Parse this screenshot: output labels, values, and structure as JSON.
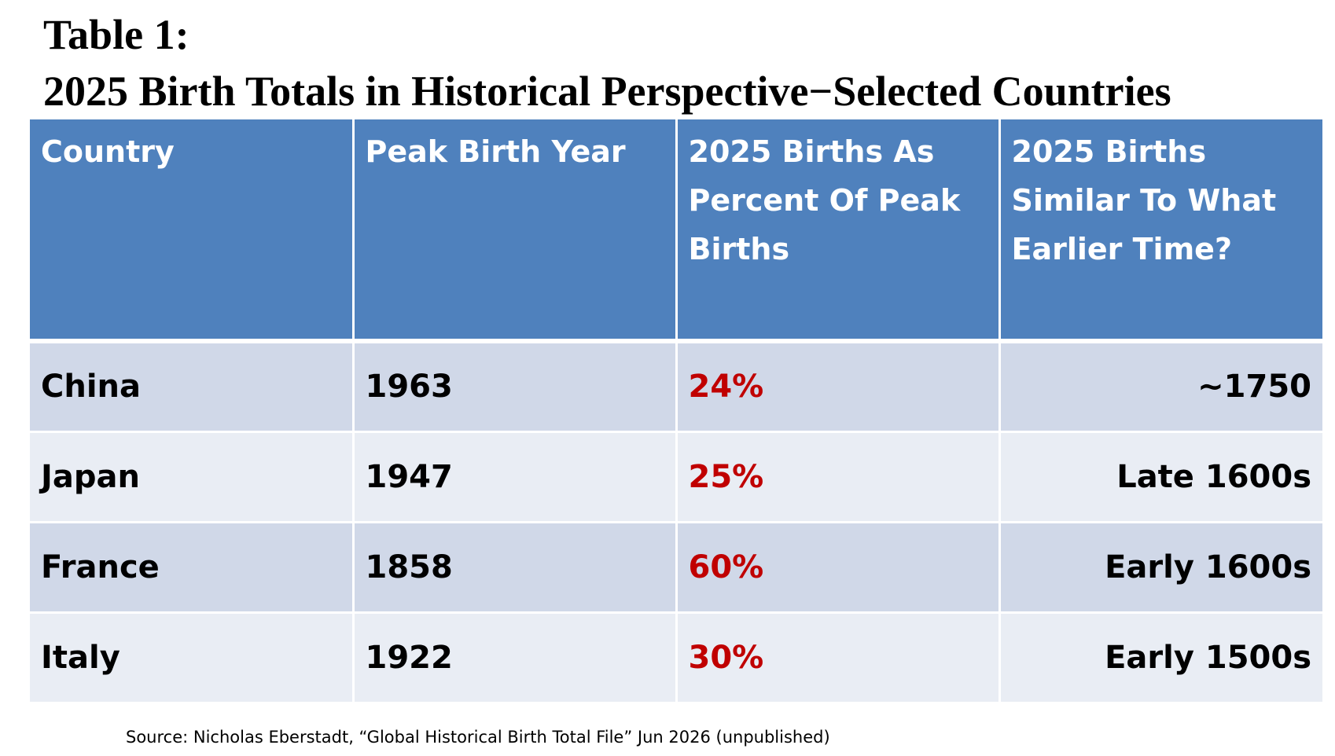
{
  "title": {
    "line1": "Table 1:",
    "line2": "2025 Birth Totals in Historical Perspective−Selected Countries"
  },
  "table": {
    "headers": [
      "Country",
      "Peak Birth Year",
      "2025 Births As Percent  Of Peak Births",
      "2025 Births Similar To  What Earlier Time?"
    ],
    "rows": [
      [
        "China",
        "1963",
        "24%",
        "~1750"
      ],
      [
        "Japan",
        "1947",
        "25%",
        "Late 1600s"
      ],
      [
        "France",
        "1858",
        "60%",
        "Early 1600s"
      ],
      [
        "Italy",
        "1922",
        "30%",
        "Early 1500s"
      ]
    ]
  },
  "source": "Source: Nicholas Eberstadt, “Global Historical Birth Total File” Jun 2026  (unpublished)",
  "colors": {
    "header_bg": "#4f81bd",
    "row_odd_bg": "#d0d8e8",
    "row_even_bg": "#e9edf4",
    "percent_text": "#c00000"
  }
}
